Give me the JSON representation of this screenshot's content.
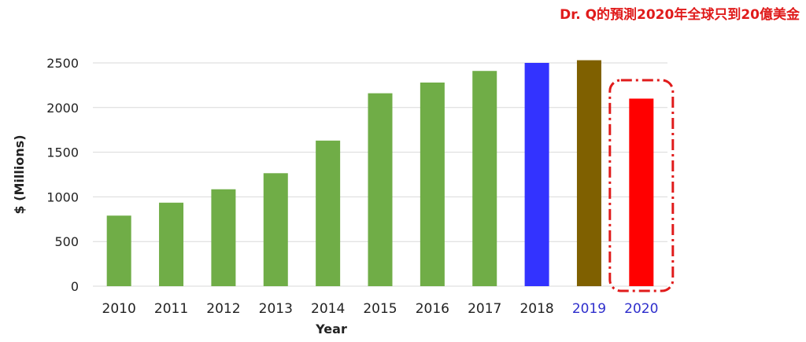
{
  "chart_data": {
    "type": "bar",
    "title": "",
    "xlabel": "Year",
    "ylabel": "$ (Millions)",
    "ylim": [
      0,
      2500
    ],
    "yticks": [
      0,
      500,
      1000,
      1500,
      2000,
      2500
    ],
    "grid": true,
    "categories": [
      "2010",
      "2011",
      "2012",
      "2013",
      "2014",
      "2015",
      "2016",
      "2017",
      "2018",
      "2019",
      "2020"
    ],
    "values": [
      790,
      935,
      1085,
      1265,
      1630,
      2160,
      2280,
      2410,
      2500,
      2530,
      2100
    ],
    "bar_colors": [
      "#70ad47",
      "#70ad47",
      "#70ad47",
      "#70ad47",
      "#70ad47",
      "#70ad47",
      "#70ad47",
      "#70ad47",
      "#3333ff",
      "#7f6000",
      "#ff0000"
    ],
    "tick_label_colors": [
      "#222222",
      "#222222",
      "#222222",
      "#222222",
      "#222222",
      "#222222",
      "#222222",
      "#222222",
      "#222222",
      "#2e2ecc",
      "#2e2ecc"
    ],
    "annotation": {
      "text": "Dr. Q的預測2020年全球只到20億美金",
      "color": "#e01b1b",
      "highlight_category": "2020",
      "highlight_color": "#e01b1b"
    }
  }
}
